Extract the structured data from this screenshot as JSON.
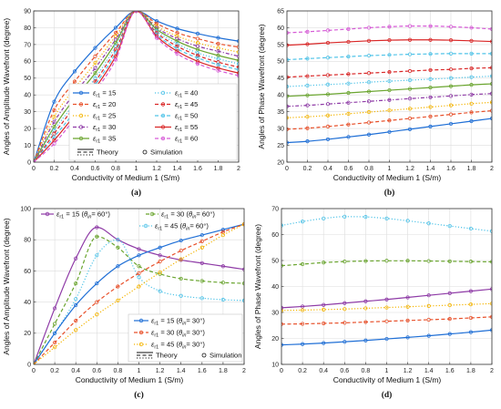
{
  "colors": {
    "blue": "#1f6fd6",
    "orange": "#e8502a",
    "yellow": "#f4b400",
    "purple": "#8e3aa6",
    "green": "#6aa52f",
    "cyan": "#4fc3e8",
    "red": "#d92626",
    "magenta": "#d65ad6"
  },
  "chart_data": [
    {
      "type": "line",
      "panel_label": "(a)",
      "xlabel": "Conductivity of Medium 1 (S/m)",
      "ylabel": "Angles of Amplitude Wavefront (degree)",
      "xlim": [
        0,
        2
      ],
      "ylim": [
        0,
        90
      ],
      "xticks": [
        0,
        0.2,
        0.4,
        0.6,
        0.8,
        1,
        1.2,
        1.4,
        1.6,
        1.8,
        2
      ],
      "xtick_labels": [
        "0",
        "0.2",
        "0.4",
        "0.6",
        "0.8",
        "1",
        "1.2",
        "1.4",
        "1.6",
        "1.8",
        "2"
      ],
      "yticks": [
        0,
        10,
        20,
        30,
        40,
        50,
        60,
        70,
        80,
        90
      ],
      "ytick_labels": [
        "0",
        "10",
        "20",
        "30",
        "40",
        "50",
        "60",
        "70",
        "80",
        "90"
      ],
      "grid": true,
      "legend_position": "bottom-inside",
      "legend_columns": 2,
      "style_legend": {
        "theory": "Theory",
        "simulation": "Simulation"
      },
      "x": [
        0,
        0.2,
        0.4,
        0.6,
        0.8,
        1,
        1.2,
        1.4,
        1.6,
        1.8,
        2
      ],
      "series": [
        {
          "name": "εr1 = 15",
          "sub": "r1",
          "val": "15",
          "color": "blue",
          "dash": "solid",
          "values": [
            0,
            36,
            54,
            68,
            80,
            90,
            84,
            79.5,
            76.5,
            74,
            72
          ]
        },
        {
          "name": "εr1 = 20",
          "sub": "r1",
          "val": "20",
          "color": "orange",
          "dash": "dash",
          "values": [
            0,
            31,
            48,
            63,
            77,
            90,
            82.5,
            77,
            73.5,
            70.5,
            68.5
          ]
        },
        {
          "name": "εr1 = 25",
          "sub": "r1",
          "val": "25",
          "color": "yellow",
          "dash": "dot",
          "values": [
            0,
            27,
            44,
            59,
            75,
            90,
            81,
            75,
            71,
            68,
            65.5
          ]
        },
        {
          "name": "εr1 = 30",
          "sub": "r1",
          "val": "30",
          "color": "purple",
          "dash": "dashdot",
          "values": [
            0,
            24,
            41,
            56,
            73,
            90,
            80,
            73.5,
            69,
            66,
            63
          ]
        },
        {
          "name": "εr1 = 35",
          "sub": "r1",
          "val": "35",
          "color": "green",
          "dash": "solid",
          "values": [
            0,
            21,
            38,
            53,
            71,
            90,
            79,
            72,
            67,
            63.5,
            60.5
          ]
        },
        {
          "name": "εr1 = 40",
          "sub": "r1",
          "val": "40",
          "color": "cyan",
          "dash": "dot",
          "values": [
            0,
            19,
            35,
            50,
            69,
            90,
            78,
            70.5,
            65,
            61.5,
            58.5
          ]
        },
        {
          "name": "εr1 = 45",
          "sub": "r1",
          "val": "45",
          "color": "red",
          "dash": "dash",
          "values": [
            0,
            17,
            33,
            48,
            67,
            90,
            77,
            69,
            63.5,
            59.5,
            56.5
          ]
        },
        {
          "name": "εr1 = 50",
          "sub": "r1",
          "val": "50",
          "color": "cyan",
          "dash": "dash",
          "values": [
            0,
            15,
            30,
            46,
            65,
            90,
            76,
            67.5,
            62,
            58,
            55
          ]
        },
        {
          "name": "εr1 = 55",
          "sub": "r1",
          "val": "55",
          "color": "red",
          "dash": "solid",
          "values": [
            0,
            13,
            28,
            44,
            63,
            90,
            75,
            66,
            60,
            56,
            53
          ]
        },
        {
          "name": "εr1 = 60",
          "sub": "r1",
          "val": "60",
          "color": "magenta",
          "dash": "dash",
          "values": [
            0,
            11,
            26,
            42,
            61,
            90,
            74,
            64.5,
            58.5,
            54.5,
            51.5
          ]
        }
      ]
    },
    {
      "type": "line",
      "panel_label": "(b)",
      "xlabel": "Conductivity of Medium 1 (S/m)",
      "ylabel": "Angles of Phase Wavefront (degree)",
      "xlim": [
        0,
        2
      ],
      "ylim": [
        20,
        65
      ],
      "xticks": [
        0,
        0.2,
        0.4,
        0.6,
        0.8,
        1,
        1.2,
        1.4,
        1.6,
        1.8,
        2
      ],
      "xtick_labels": [
        "0",
        "0.2",
        "0.4",
        "0.6",
        "0.8",
        "1",
        "1.2",
        "1.4",
        "1.6",
        "1.8",
        "2"
      ],
      "yticks": [
        20,
        25,
        30,
        35,
        40,
        45,
        50,
        55,
        60,
        65
      ],
      "ytick_labels": [
        "20",
        "25",
        "30",
        "35",
        "40",
        "45",
        "50",
        "55",
        "60",
        "65"
      ],
      "grid": true,
      "x": [
        0,
        0.2,
        0.4,
        0.6,
        0.8,
        1,
        1.2,
        1.4,
        1.6,
        1.8,
        2
      ],
      "series": [
        {
          "color": "blue",
          "dash": "solid",
          "values": [
            25.8,
            26.2,
            26.8,
            27.5,
            28.2,
            29,
            29.8,
            30.6,
            31.4,
            32.2,
            33
          ]
        },
        {
          "color": "orange",
          "dash": "dash",
          "values": [
            29.8,
            30.1,
            30.6,
            31.2,
            31.8,
            32.4,
            33,
            33.6,
            34.2,
            34.8,
            35.3
          ]
        },
        {
          "color": "yellow",
          "dash": "dot",
          "values": [
            33.2,
            33.5,
            33.9,
            34.4,
            34.9,
            35.4,
            35.9,
            36.4,
            36.9,
            37.4,
            37.8
          ]
        },
        {
          "color": "purple",
          "dash": "dashdot",
          "values": [
            36.6,
            36.9,
            37.3,
            37.7,
            38.1,
            38.5,
            38.9,
            39.3,
            39.7,
            40.1,
            40.4
          ]
        },
        {
          "color": "green",
          "dash": "solid",
          "values": [
            39.6,
            39.9,
            40.2,
            40.6,
            41,
            41.4,
            41.8,
            42.2,
            42.6,
            43,
            43.3
          ]
        },
        {
          "color": "cyan",
          "dash": "dot",
          "values": [
            42.5,
            42.8,
            43.1,
            43.4,
            43.8,
            44.1,
            44.4,
            44.7,
            45,
            45.3,
            45.6
          ]
        },
        {
          "color": "red",
          "dash": "dash",
          "values": [
            45.3,
            45.6,
            45.9,
            46.2,
            46.5,
            46.8,
            47.1,
            47.4,
            47.6,
            47.9,
            48.1
          ]
        },
        {
          "color": "cyan",
          "dash": "dash",
          "values": [
            50.5,
            50.8,
            51.1,
            51.4,
            51.7,
            51.9,
            52.1,
            52.2,
            52.3,
            52.3,
            52.3
          ]
        },
        {
          "color": "red",
          "dash": "solid",
          "values": [
            54.8,
            55.1,
            55.5,
            55.8,
            56.1,
            56.3,
            56.4,
            56.4,
            56.3,
            56.1,
            55.9
          ]
        },
        {
          "color": "magenta",
          "dash": "dash",
          "values": [
            58.5,
            58.8,
            59.2,
            59.6,
            60,
            60.3,
            60.5,
            60.5,
            60.3,
            60,
            59.6
          ]
        }
      ]
    },
    {
      "type": "line",
      "panel_label": "(c)",
      "xlabel": "Conductivity of Medium 1 (S/m)",
      "ylabel": "Angles of Amplitude Wavefront (degree)",
      "xlim": [
        0,
        2
      ],
      "ylim": [
        0,
        100
      ],
      "xticks": [
        0,
        0.2,
        0.4,
        0.6,
        0.8,
        1,
        1.2,
        1.4,
        1.6,
        1.8,
        2
      ],
      "xtick_labels": [
        "0",
        "0.2",
        "0.4",
        "0.6",
        "0.8",
        "1",
        "1.2",
        "1.4",
        "1.6",
        "1.8",
        "2"
      ],
      "yticks": [
        0,
        20,
        40,
        60,
        80,
        100
      ],
      "ytick_labels": [
        "0",
        "20",
        "40",
        "60",
        "80",
        "100"
      ],
      "grid": true,
      "legend_position": "top and bottom-right inside",
      "style_legend": {
        "theory": "Theory",
        "simulation": "Simulation"
      },
      "x": [
        0,
        0.2,
        0.4,
        0.6,
        0.8,
        1,
        1.2,
        1.4,
        1.6,
        1.8,
        2
      ],
      "series": [
        {
          "name": "εr1 = 15 (θin = 60°)",
          "val": "15",
          "angle": "60°",
          "color": "purple",
          "dash": "solid",
          "legend_group": "top",
          "values": [
            0,
            36,
            68,
            88,
            80,
            74,
            70,
            67,
            65,
            63,
            61
          ]
        },
        {
          "name": "εr1 = 30 (θin = 60°)",
          "val": "30",
          "angle": "60°",
          "color": "green",
          "dash": "dash",
          "legend_group": "top",
          "values": [
            0,
            26,
            52,
            82,
            75,
            63,
            58,
            55,
            53.5,
            52.5,
            52
          ]
        },
        {
          "name": "εr1 = 45 (θin = 60°)",
          "val": "45",
          "angle": "60°",
          "color": "cyan",
          "dash": "dot",
          "legend_group": "top",
          "values": [
            0,
            20,
            42,
            70,
            80,
            56,
            47,
            44,
            42.5,
            41.5,
            41
          ]
        },
        {
          "name": "εr1 = 15 (θin = 30°)",
          "val": "15",
          "angle": "30°",
          "color": "blue",
          "dash": "solid",
          "legend_group": "bottom",
          "values": [
            0,
            20,
            38,
            52,
            63,
            70,
            75,
            79.5,
            83,
            86.5,
            90
          ]
        },
        {
          "name": "εr1 = 30 (θin = 30°)",
          "val": "30",
          "angle": "30°",
          "color": "orange",
          "dash": "dash",
          "legend_group": "bottom",
          "values": [
            0,
            14,
            28,
            40,
            50,
            58.5,
            66,
            73,
            79,
            85,
            90
          ]
        },
        {
          "name": "εr1 = 45 (θin = 30°)",
          "val": "45",
          "angle": "30°",
          "color": "yellow",
          "dash": "dot",
          "legend_group": "bottom",
          "values": [
            0,
            11,
            22,
            32,
            41,
            50,
            59,
            67.5,
            75,
            83,
            90
          ]
        }
      ]
    },
    {
      "type": "line",
      "panel_label": "(d)",
      "xlabel": "Conductivity of Medium 1 (S/m)",
      "ylabel": "Angles of Phase Wavefront (degree)",
      "xlim": [
        0,
        2
      ],
      "ylim": [
        10,
        70
      ],
      "xticks": [
        0,
        0.2,
        0.4,
        0.6,
        0.8,
        1,
        1.2,
        1.4,
        1.6,
        1.8,
        2
      ],
      "xtick_labels": [
        "0",
        "0.2",
        "0.4",
        "0.6",
        "0.8",
        "1",
        "1.2",
        "1.4",
        "1.6",
        "1.8",
        "2"
      ],
      "yticks": [
        10,
        20,
        30,
        40,
        50,
        60,
        70
      ],
      "ytick_labels": [
        "10",
        "20",
        "30",
        "40",
        "50",
        "60",
        "70"
      ],
      "grid": true,
      "x": [
        0,
        0.2,
        0.4,
        0.6,
        0.8,
        1,
        1.2,
        1.4,
        1.6,
        1.8,
        2
      ],
      "series": [
        {
          "color": "blue",
          "dash": "solid",
          "values": [
            17.5,
            17.8,
            18.2,
            18.7,
            19.2,
            19.8,
            20.4,
            21,
            21.7,
            22.4,
            23.2
          ]
        },
        {
          "color": "orange",
          "dash": "dash",
          "values": [
            25.5,
            25.6,
            25.8,
            26,
            26.3,
            26.6,
            26.9,
            27.2,
            27.5,
            27.9,
            28.3
          ]
        },
        {
          "color": "yellow",
          "dash": "dot",
          "values": [
            30.8,
            30.9,
            31.1,
            31.3,
            31.6,
            31.9,
            32.2,
            32.5,
            32.8,
            33.1,
            33.4
          ]
        },
        {
          "color": "purple",
          "dash": "solid",
          "values": [
            31.8,
            32.3,
            32.9,
            33.6,
            34.3,
            35,
            35.8,
            36.6,
            37.4,
            38.2,
            39
          ]
        },
        {
          "color": "green",
          "dash": "dash",
          "values": [
            48,
            48.6,
            49.2,
            49.6,
            49.8,
            49.9,
            49.9,
            49.8,
            49.7,
            49.6,
            49.5
          ]
        },
        {
          "color": "cyan",
          "dash": "dot",
          "values": [
            63.5,
            65,
            66.2,
            66.9,
            66.8,
            66.2,
            65.3,
            64.3,
            63.3,
            62.3,
            61.3
          ]
        }
      ]
    }
  ]
}
